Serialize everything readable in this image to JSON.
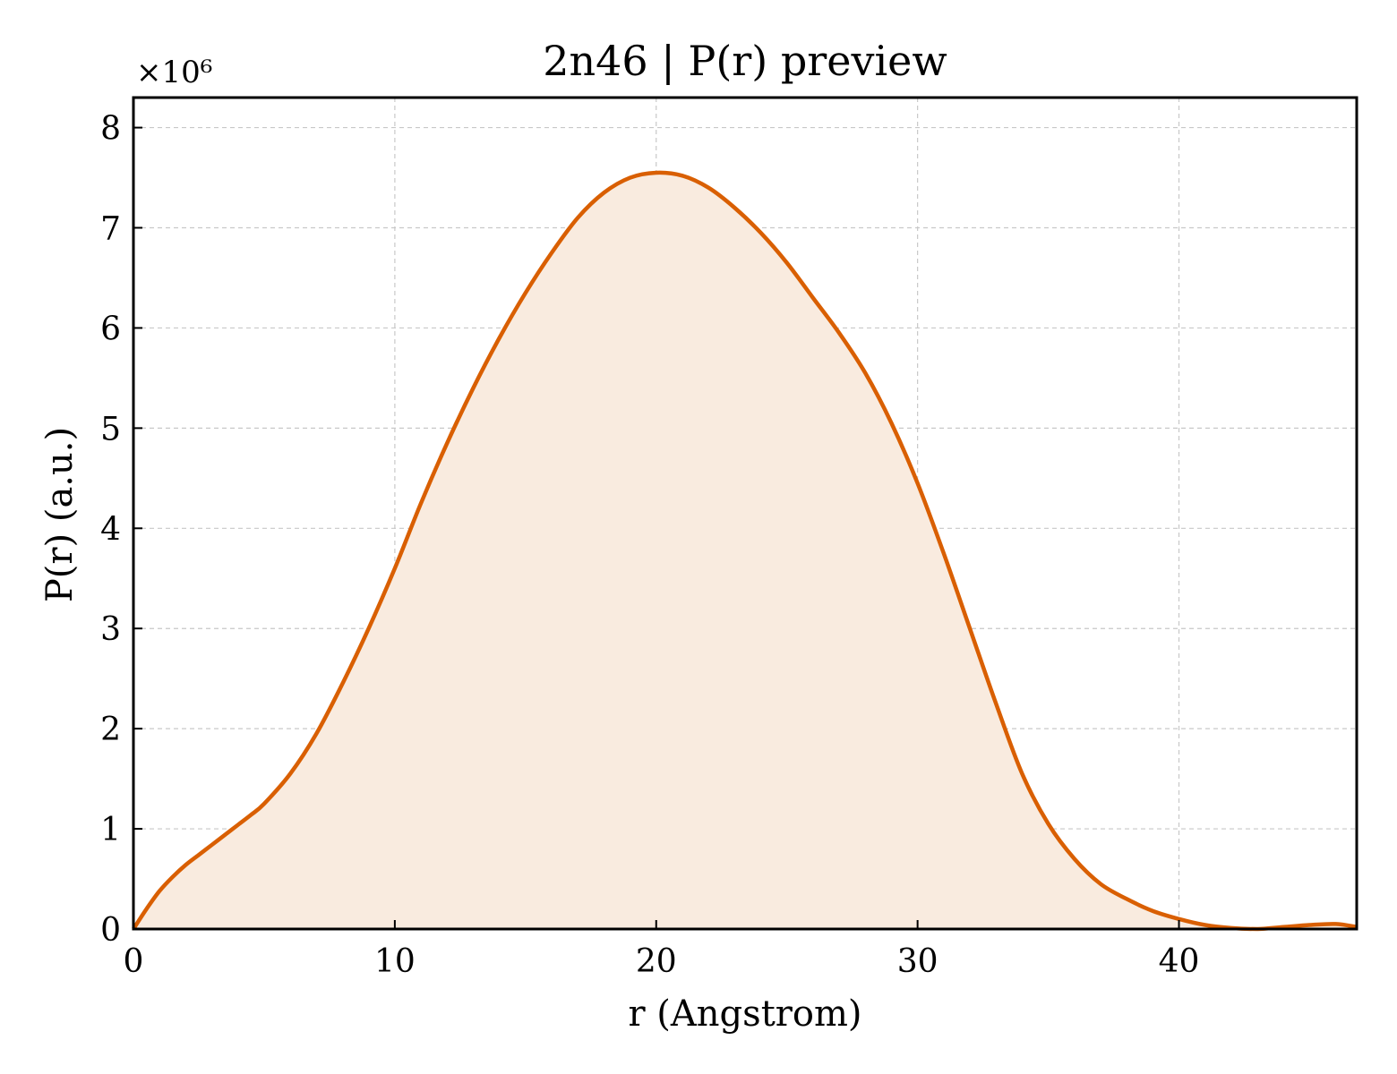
{
  "chart_data": {
    "type": "area",
    "title": "2n46 | P(r) preview",
    "xlabel": "r (Angstrom)",
    "ylabel": "P(r) (a.u.)",
    "y_offset_label": "×10⁶",
    "y_scale": 1000000,
    "xlim": [
      0,
      46.8
    ],
    "ylim": [
      0,
      8.3
    ],
    "xticks": [
      0,
      10,
      20,
      30,
      40
    ],
    "yticks": [
      0,
      1,
      2,
      3,
      4,
      5,
      6,
      7,
      8
    ],
    "grid": true,
    "line_color": "#d95f02",
    "fill_color": "#f9ebdf",
    "series": [
      {
        "x": [
          0,
          0.5,
          1,
          1.5,
          2,
          2.5,
          3,
          3.5,
          4,
          4.5,
          5,
          6,
          7,
          8,
          9,
          10,
          11,
          12,
          13,
          14,
          15,
          16,
          17,
          18,
          19,
          20,
          21,
          22,
          23,
          24,
          25,
          26,
          27,
          28,
          29,
          30,
          31,
          32,
          33,
          34,
          35,
          36,
          37,
          38,
          39,
          40,
          41,
          42,
          43,
          44,
          45,
          46,
          46.8
        ],
        "y": [
          0.0,
          0.2,
          0.38,
          0.52,
          0.64,
          0.74,
          0.84,
          0.94,
          1.04,
          1.14,
          1.25,
          1.55,
          1.95,
          2.45,
          3.0,
          3.6,
          4.25,
          4.85,
          5.4,
          5.9,
          6.35,
          6.75,
          7.1,
          7.35,
          7.5,
          7.55,
          7.52,
          7.4,
          7.2,
          6.95,
          6.65,
          6.3,
          5.95,
          5.55,
          5.05,
          4.45,
          3.75,
          3.0,
          2.25,
          1.55,
          1.05,
          0.7,
          0.45,
          0.3,
          0.18,
          0.1,
          0.04,
          0.01,
          0.0,
          0.02,
          0.04,
          0.05,
          0.02
        ]
      }
    ]
  }
}
